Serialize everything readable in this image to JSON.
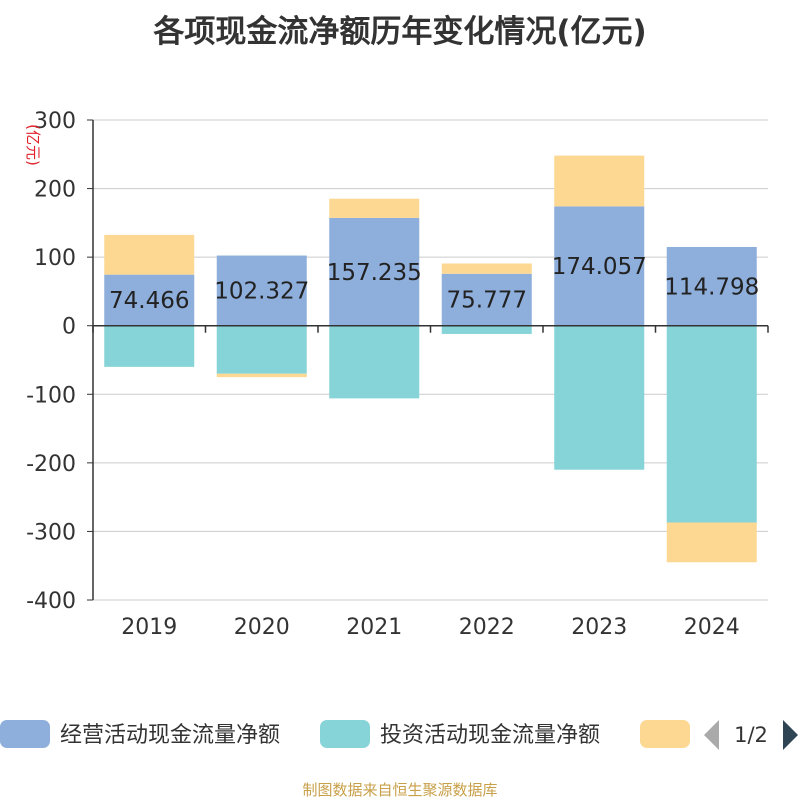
{
  "title": "各项现金流净额历年变化情况(亿元)",
  "source": "制图数据来自恒生聚源数据库",
  "legend": {
    "items": [
      {
        "label": "经营活动现金流量净额",
        "color": "#8eaedb"
      },
      {
        "label": "投资活动现金流量净额",
        "color": "#86d4d8"
      },
      {
        "label": "",
        "color": "#fdd893"
      }
    ],
    "page": "1/2"
  },
  "chart_data": {
    "type": "bar",
    "stacked": true,
    "ylabel": "(亿元)",
    "ylim": [
      -400,
      300
    ],
    "yticks": [
      300,
      200,
      100,
      0,
      -100,
      -200,
      -300,
      -400
    ],
    "categories": [
      "2019",
      "2020",
      "2021",
      "2022",
      "2023",
      "2024"
    ],
    "grid": true,
    "series": [
      {
        "name": "经营活动现金流量净额",
        "color": "#8eaedb",
        "values": [
          74.466,
          102.327,
          157.235,
          75.777,
          174.057,
          114.798
        ],
        "labels": [
          "74.466",
          "102.327",
          "157.235",
          "75.777",
          "174.057",
          "114.798"
        ]
      },
      {
        "name": "投资活动现金流量净额",
        "color": "#86d4d8",
        "values": [
          -60,
          -70,
          -106,
          -12,
          -210,
          -287
        ]
      },
      {
        "color": "#fdd893",
        "values": [
          58,
          -5,
          28,
          15,
          74,
          -58
        ]
      }
    ]
  }
}
